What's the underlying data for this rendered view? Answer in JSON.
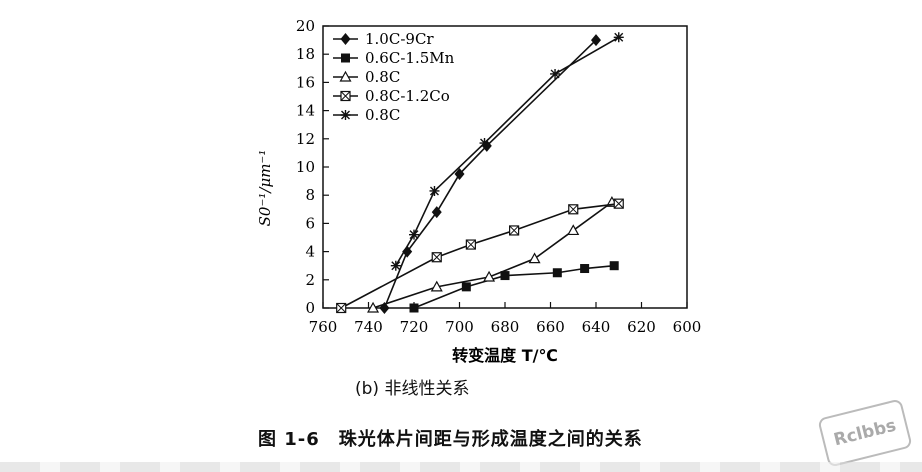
{
  "chart_data": {
    "type": "line",
    "xlabel": "转变温度 T/℃",
    "ylabel": "S0⁻¹/μm⁻¹",
    "xlim": [
      760,
      600
    ],
    "ylim": [
      0,
      20
    ],
    "x_ticks": [
      760,
      740,
      720,
      700,
      680,
      660,
      640,
      620,
      600
    ],
    "y_ticks": [
      0,
      2,
      4,
      6,
      8,
      10,
      12,
      14,
      16,
      18,
      20
    ],
    "legend_position": "top-left",
    "series": [
      {
        "name": "1.0C-9Cr",
        "marker": "diamond",
        "x": [
          733,
          723,
          710,
          700,
          688,
          640
        ],
        "y": [
          0,
          4,
          6.8,
          9.5,
          11.5,
          19
        ]
      },
      {
        "name": "0.6C-1.5Mn",
        "marker": "square",
        "x": [
          720,
          697,
          680,
          657,
          645,
          632
        ],
        "y": [
          0,
          1.5,
          2.3,
          2.5,
          2.8,
          3.0
        ]
      },
      {
        "name": "0.8C",
        "marker": "triangle",
        "x": [
          738,
          710,
          687,
          667,
          650,
          633
        ],
        "y": [
          0,
          1.5,
          2.2,
          3.5,
          5.5,
          7.5
        ]
      },
      {
        "name": "0.8C-1.2Co",
        "marker": "box-x",
        "x": [
          752,
          710,
          695,
          676,
          650,
          630
        ],
        "y": [
          0,
          3.6,
          4.5,
          5.5,
          7.0,
          7.4
        ]
      },
      {
        "name": "0.8C",
        "marker": "star",
        "x": [
          728,
          720,
          711,
          689,
          658,
          630
        ],
        "y": [
          3.0,
          5.2,
          8.3,
          11.7,
          16.6,
          19.2
        ]
      }
    ]
  },
  "subtitle": "(b) 非线性关系",
  "caption": "图 1-6　珠光体片间距与形成温度之间的关系",
  "watermark": "Rclbbs"
}
